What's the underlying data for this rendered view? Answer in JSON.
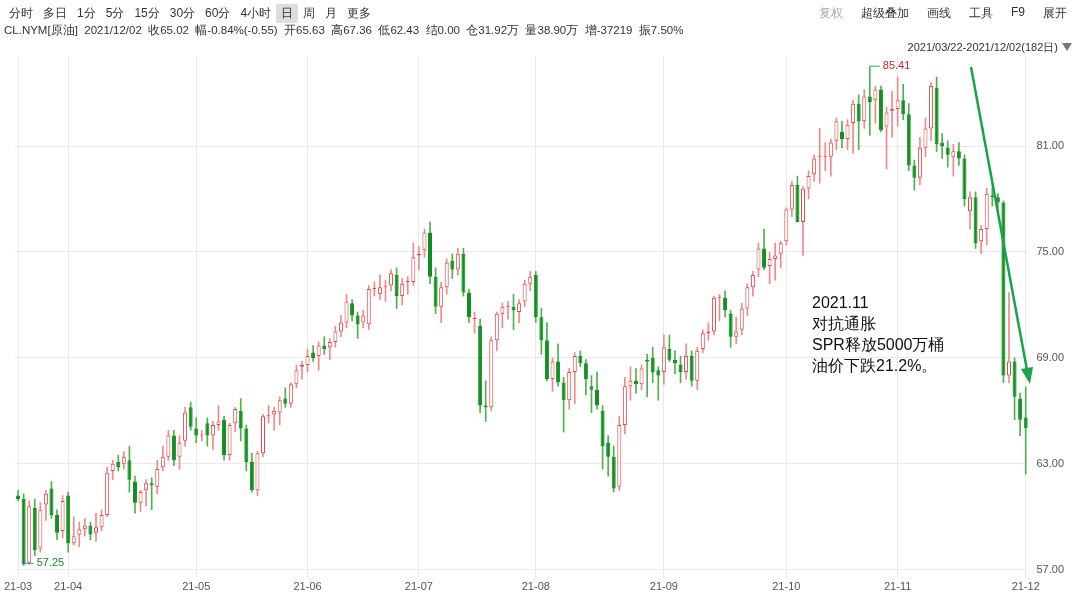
{
  "chart_data": {
    "type": "candlestick",
    "annotations": [
      "分时",
      "多日",
      "1分",
      "5分",
      "15分",
      "30分",
      "60分",
      "4小时",
      "日",
      "周",
      "月",
      "更多",
      "复权",
      "超级叠加",
      "画线",
      "工具",
      "F9",
      "展开",
      "CL.NYM[原油]  2021/12/02  收65.02  幅-0.84%(-0.55)  开65.63  高67.36  低62.43  结0.00  仓31.92万  量38.90万  增-37219  振7.50%",
      "2021/03/22-2021/12/02(182日)",
      "2021.11",
      "对抗通胀",
      "SPR释放5000万桶",
      "油价下跌21.2%。",
      "85.41",
      "57.25"
    ],
    "categories": [
      "21-03",
      null,
      null,
      null,
      null,
      null,
      null,
      null,
      null,
      "21-04",
      null,
      null,
      null,
      null,
      null,
      null,
      null,
      null,
      null,
      null,
      null,
      null,
      null,
      null,
      null,
      null,
      null,
      null,
      null,
      null,
      null,
      null,
      "21-05",
      null,
      null,
      null,
      null,
      null,
      null,
      null,
      null,
      null,
      null,
      null,
      null,
      null,
      null,
      null,
      null,
      null,
      null,
      null,
      "21-06",
      null,
      null,
      null,
      null,
      null,
      null,
      null,
      null,
      null,
      null,
      null,
      null,
      null,
      null,
      null,
      null,
      null,
      null,
      null,
      "21-07",
      null,
      null,
      null,
      null,
      null,
      null,
      null,
      null,
      null,
      null,
      null,
      null,
      null,
      null,
      null,
      null,
      null,
      null,
      null,
      null,
      "21-08",
      null,
      null,
      null,
      null,
      null,
      null,
      null,
      null,
      null,
      null,
      null,
      null,
      null,
      null,
      null,
      null,
      null,
      null,
      null,
      null,
      null,
      null,
      "21-09",
      null,
      null,
      null,
      null,
      null,
      null,
      null,
      null,
      null,
      null,
      null,
      null,
      null,
      null,
      null,
      null,
      null,
      null,
      null,
      null,
      null,
      "21-10",
      null,
      null,
      null,
      null,
      null,
      null,
      null,
      null,
      null,
      null,
      null,
      null,
      null,
      null,
      null,
      null,
      null,
      null,
      null,
      "21-11",
      null,
      null,
      null,
      null,
      null,
      null,
      null,
      null,
      null,
      null,
      null,
      null,
      null,
      null,
      null,
      null,
      null,
      null,
      null,
      null,
      null,
      null,
      "21-12"
    ],
    "ohlc": [
      [
        61.2,
        61.5,
        60.9,
        61.0
      ],
      [
        61.0,
        61.3,
        57.25,
        57.3
      ],
      [
        57.4,
        60.9,
        57.3,
        60.6
      ],
      [
        60.5,
        61.0,
        57.8,
        58.1
      ],
      [
        58.2,
        60.8,
        58.0,
        60.4
      ],
      [
        60.7,
        61.5,
        59.8,
        61.3
      ],
      [
        61.6,
        62.0,
        59.9,
        60.1
      ],
      [
        60.1,
        60.4,
        58.7,
        59.1
      ],
      [
        59.2,
        61.2,
        58.8,
        60.9
      ],
      [
        61.2,
        61.4,
        58.0,
        58.5
      ],
      [
        58.5,
        60.0,
        58.4,
        58.9
      ],
      [
        59.0,
        59.7,
        58.3,
        59.3
      ],
      [
        59.3,
        59.9,
        58.9,
        59.5
      ],
      [
        59.5,
        59.7,
        58.7,
        59.0
      ],
      [
        59.1,
        60.2,
        58.6,
        59.4
      ],
      [
        59.4,
        60.4,
        59.2,
        60.1
      ],
      [
        60.1,
        62.8,
        60.0,
        62.5
      ],
      [
        62.6,
        63.2,
        62.1,
        63.0
      ],
      [
        63.1,
        63.5,
        62.6,
        62.8
      ],
      [
        63.0,
        63.7,
        62.7,
        63.4
      ],
      [
        63.2,
        64.0,
        61.4,
        62.1
      ],
      [
        62.0,
        62.3,
        60.2,
        60.8
      ],
      [
        60.8,
        61.5,
        60.3,
        61.4
      ],
      [
        61.5,
        62.1,
        60.6,
        61.9
      ],
      [
        61.9,
        62.2,
        60.4,
        61.8
      ],
      [
        61.7,
        63.2,
        61.3,
        62.7
      ],
      [
        62.8,
        64.0,
        62.6,
        63.4
      ],
      [
        63.4,
        64.9,
        63.2,
        64.6
      ],
      [
        64.6,
        64.9,
        62.9,
        63.2
      ],
      [
        63.4,
        64.6,
        62.7,
        64.2
      ],
      [
        64.3,
        66.2,
        64.0,
        65.9
      ],
      [
        66.2,
        66.5,
        64.9,
        65.1
      ],
      [
        65.0,
        65.6,
        64.2,
        64.6
      ],
      [
        64.6,
        64.9,
        64.3,
        64.6
      ],
      [
        65.3,
        65.6,
        64.0,
        64.6
      ],
      [
        64.6,
        65.4,
        63.8,
        65.2
      ],
      [
        65.2,
        66.3,
        64.9,
        65.4
      ],
      [
        65.5,
        65.7,
        63.2,
        63.5
      ],
      [
        63.5,
        65.3,
        63.2,
        65.2
      ],
      [
        65.3,
        66.2,
        64.8,
        66.1
      ],
      [
        66.0,
        66.7,
        64.3,
        65.0
      ],
      [
        65.0,
        65.2,
        62.6,
        63.1
      ],
      [
        63.1,
        63.6,
        61.4,
        61.5
      ],
      [
        61.5,
        63.7,
        61.2,
        63.6
      ],
      [
        63.6,
        65.8,
        63.4,
        65.7
      ],
      [
        65.7,
        66.3,
        65.3,
        65.7
      ],
      [
        65.8,
        66.2,
        64.9,
        66.0
      ],
      [
        65.9,
        66.8,
        65.2,
        66.6
      ],
      [
        66.7,
        67.3,
        66.2,
        66.4
      ],
      [
        66.4,
        67.6,
        66.2,
        67.5
      ],
      [
        67.5,
        68.6,
        67.3,
        68.3
      ],
      [
        68.5,
        68.8,
        67.8,
        68.6
      ],
      [
        68.6,
        69.5,
        68.2,
        69.1
      ],
      [
        69.3,
        69.7,
        68.8,
        69.0
      ],
      [
        69.1,
        69.9,
        68.3,
        69.7
      ],
      [
        69.7,
        70.2,
        69.2,
        69.5
      ],
      [
        69.6,
        70.1,
        68.9,
        69.9
      ],
      [
        69.9,
        70.8,
        69.6,
        70.5
      ],
      [
        70.5,
        71.4,
        70.2,
        71.0
      ],
      [
        71.0,
        72.6,
        70.7,
        72.2
      ],
      [
        72.1,
        72.3,
        71.1,
        71.4
      ],
      [
        71.4,
        71.6,
        70.1,
        70.9
      ],
      [
        71.0,
        71.7,
        70.7,
        71.4
      ],
      [
        70.9,
        73.1,
        70.6,
        72.9
      ],
      [
        72.9,
        73.3,
        72.5,
        72.9
      ],
      [
        72.6,
        73.7,
        72.3,
        73.0
      ],
      [
        73.0,
        73.4,
        72.2,
        73.0
      ],
      [
        73.1,
        74.0,
        72.8,
        73.8
      ],
      [
        73.7,
        74.1,
        71.8,
        72.5
      ],
      [
        72.5,
        73.5,
        72.0,
        73.2
      ],
      [
        73.3,
        73.6,
        72.6,
        73.3
      ],
      [
        73.3,
        75.5,
        73.1,
        74.7
      ],
      [
        74.8,
        75.3,
        74.0,
        74.9
      ],
      [
        75.1,
        76.3,
        74.7,
        76.1
      ],
      [
        76.1,
        76.7,
        73.2,
        73.6
      ],
      [
        73.6,
        74.1,
        71.5,
        71.9
      ],
      [
        71.9,
        73.3,
        71.0,
        73.0
      ],
      [
        73.0,
        74.6,
        72.6,
        74.4
      ],
      [
        74.5,
        74.9,
        73.5,
        74.0
      ],
      [
        74.0,
        75.2,
        73.7,
        74.9
      ],
      [
        74.9,
        75.2,
        72.5,
        72.7
      ],
      [
        72.7,
        72.9,
        71.0,
        71.3
      ],
      [
        71.2,
        71.6,
        70.4,
        71.2
      ],
      [
        70.8,
        71.2,
        65.9,
        66.3
      ],
      [
        66.3,
        67.7,
        65.4,
        66.2
      ],
      [
        66.2,
        70.2,
        66.0,
        70.0
      ],
      [
        70.0,
        71.6,
        69.4,
        71.5
      ],
      [
        71.5,
        72.1,
        70.7,
        71.9
      ],
      [
        71.9,
        72.2,
        71.2,
        71.9
      ],
      [
        71.9,
        72.6,
        70.6,
        71.7
      ],
      [
        71.6,
        72.3,
        71.0,
        72.1
      ],
      [
        72.2,
        73.4,
        71.9,
        73.2
      ],
      [
        73.2,
        73.9,
        72.8,
        73.6
      ],
      [
        73.7,
        73.9,
        71.0,
        71.3
      ],
      [
        71.3,
        71.8,
        69.2,
        70.0
      ],
      [
        70.0,
        71.0,
        67.7,
        67.8
      ],
      [
        67.8,
        69.0,
        67.1,
        68.8
      ],
      [
        68.8,
        69.8,
        67.4,
        67.6
      ],
      [
        67.6,
        67.9,
        64.8,
        66.6
      ],
      [
        66.6,
        68.4,
        66.1,
        68.2
      ],
      [
        68.2,
        69.3,
        66.4,
        69.1
      ],
      [
        69.1,
        69.4,
        68.5,
        68.7
      ],
      [
        68.7,
        68.9,
        66.9,
        67.8
      ],
      [
        67.4,
        68.0,
        65.9,
        67.2
      ],
      [
        67.2,
        68.2,
        66.1,
        66.3
      ],
      [
        66.0,
        66.3,
        62.7,
        64.0
      ],
      [
        64.2,
        64.6,
        62.3,
        63.4
      ],
      [
        63.4,
        64.0,
        61.4,
        61.6
      ],
      [
        61.7,
        65.7,
        61.5,
        65.2
      ],
      [
        65.2,
        67.9,
        64.7,
        67.4
      ],
      [
        67.4,
        68.5,
        66.6,
        67.7
      ],
      [
        67.7,
        68.4,
        67.0,
        67.5
      ],
      [
        67.5,
        68.6,
        67.2,
        68.4
      ],
      [
        68.9,
        69.2,
        66.8,
        68.8
      ],
      [
        69.0,
        69.6,
        67.6,
        68.2
      ],
      [
        68.3,
        68.5,
        66.6,
        68.0
      ],
      [
        68.2,
        70.3,
        67.5,
        69.6
      ],
      [
        69.5,
        70.3,
        68.8,
        68.9
      ],
      [
        68.9,
        69.4,
        68.1,
        68.7
      ],
      [
        68.6,
        69.1,
        67.6,
        68.2
      ],
      [
        68.2,
        69.8,
        67.8,
        69.1
      ],
      [
        69.1,
        69.4,
        67.4,
        67.7
      ],
      [
        67.7,
        69.6,
        67.2,
        69.4
      ],
      [
        69.5,
        70.6,
        69.3,
        70.4
      ],
      [
        70.4,
        71.0,
        70.0,
        70.5
      ],
      [
        70.5,
        72.5,
        70.3,
        72.4
      ],
      [
        72.4,
        72.6,
        71.1,
        72.4
      ],
      [
        72.4,
        72.8,
        71.3,
        71.7
      ],
      [
        71.5,
        71.7,
        69.6,
        70.2
      ],
      [
        70.2,
        71.3,
        69.8,
        70.5
      ],
      [
        70.6,
        72.1,
        70.3,
        71.8
      ],
      [
        71.8,
        73.2,
        71.4,
        73.0
      ],
      [
        73.0,
        73.9,
        72.5,
        73.7
      ],
      [
        74.0,
        75.5,
        73.6,
        75.2
      ],
      [
        75.2,
        76.3,
        74.0,
        74.1
      ],
      [
        74.2,
        75.0,
        73.2,
        74.6
      ],
      [
        74.6,
        75.5,
        73.4,
        74.8
      ],
      [
        74.9,
        75.6,
        74.1,
        75.5
      ],
      [
        75.6,
        77.5,
        75.4,
        77.4
      ],
      [
        77.4,
        79.0,
        77.0,
        78.8
      ],
      [
        78.8,
        79.3,
        76.7,
        76.7
      ],
      [
        76.7,
        78.7,
        74.8,
        78.6
      ],
      [
        78.6,
        79.6,
        78.0,
        79.3
      ],
      [
        79.4,
        80.5,
        79.0,
        80.3
      ],
      [
        80.4,
        82.0,
        78.9,
        80.4
      ],
      [
        80.4,
        81.2,
        79.6,
        80.4
      ],
      [
        80.4,
        81.4,
        79.3,
        81.2
      ],
      [
        81.3,
        82.6,
        80.8,
        82.4
      ],
      [
        81.8,
        82.4,
        80.9,
        81.4
      ],
      [
        81.4,
        82.5,
        80.8,
        82.2
      ],
      [
        82.3,
        83.6,
        80.6,
        83.4
      ],
      [
        83.4,
        83.9,
        80.8,
        82.4
      ],
      [
        82.4,
        84.2,
        82.0,
        83.8
      ],
      [
        83.8,
        85.41,
        81.6,
        83.5
      ],
      [
        83.6,
        84.4,
        82.3,
        84.2
      ],
      [
        84.2,
        84.4,
        81.8,
        81.9
      ],
      [
        82.1,
        83.2,
        79.7,
        82.9
      ],
      [
        83.0,
        84.1,
        81.5,
        83.1
      ],
      [
        83.1,
        84.9,
        82.1,
        83.6
      ],
      [
        83.6,
        84.5,
        82.5,
        82.8
      ],
      [
        82.8,
        83.4,
        79.6,
        79.9
      ],
      [
        79.9,
        80.2,
        78.5,
        79.2
      ],
      [
        79.2,
        81.5,
        78.8,
        80.9
      ],
      [
        80.9,
        82.6,
        80.4,
        82.0
      ],
      [
        82.0,
        84.6,
        81.3,
        84.4
      ],
      [
        84.3,
        84.9,
        80.7,
        81.1
      ],
      [
        81.2,
        81.7,
        80.3,
        81.0
      ],
      [
        80.9,
        81.3,
        79.8,
        80.5
      ],
      [
        80.4,
        81.1,
        79.3,
        80.7
      ],
      [
        80.7,
        81.2,
        79.9,
        80.3
      ],
      [
        80.3,
        80.5,
        77.6,
        78.0
      ],
      [
        77.3,
        78.4,
        76.3,
        78.1
      ],
      [
        78.1,
        78.4,
        75.2,
        75.5
      ],
      [
        75.6,
        76.5,
        74.9,
        76.3
      ],
      [
        76.3,
        78.6,
        75.4,
        78.3
      ],
      [
        78.2,
        78.6,
        77.6,
        78.1
      ],
      [
        78.1,
        78.3,
        77.2,
        77.8
      ],
      [
        77.8,
        77.9,
        67.6,
        68.0
      ],
      [
        68.0,
        72.7,
        67.6,
        68.8
      ],
      [
        68.8,
        69.0,
        65.5,
        66.8
      ],
      [
        66.7,
        67.0,
        64.6,
        65.5
      ],
      [
        65.63,
        67.36,
        62.43,
        65.02
      ]
    ],
    "ylim": [
      56.6,
      86.1
    ],
    "yticks": [
      {
        "value": 57,
        "label": "57.00"
      },
      {
        "value": 63,
        "label": "63.00"
      },
      {
        "value": 69,
        "label": "69.00"
      },
      {
        "value": 75,
        "label": "75.00"
      },
      {
        "value": 81,
        "label": "81.00"
      }
    ],
    "grid": true
  }
}
